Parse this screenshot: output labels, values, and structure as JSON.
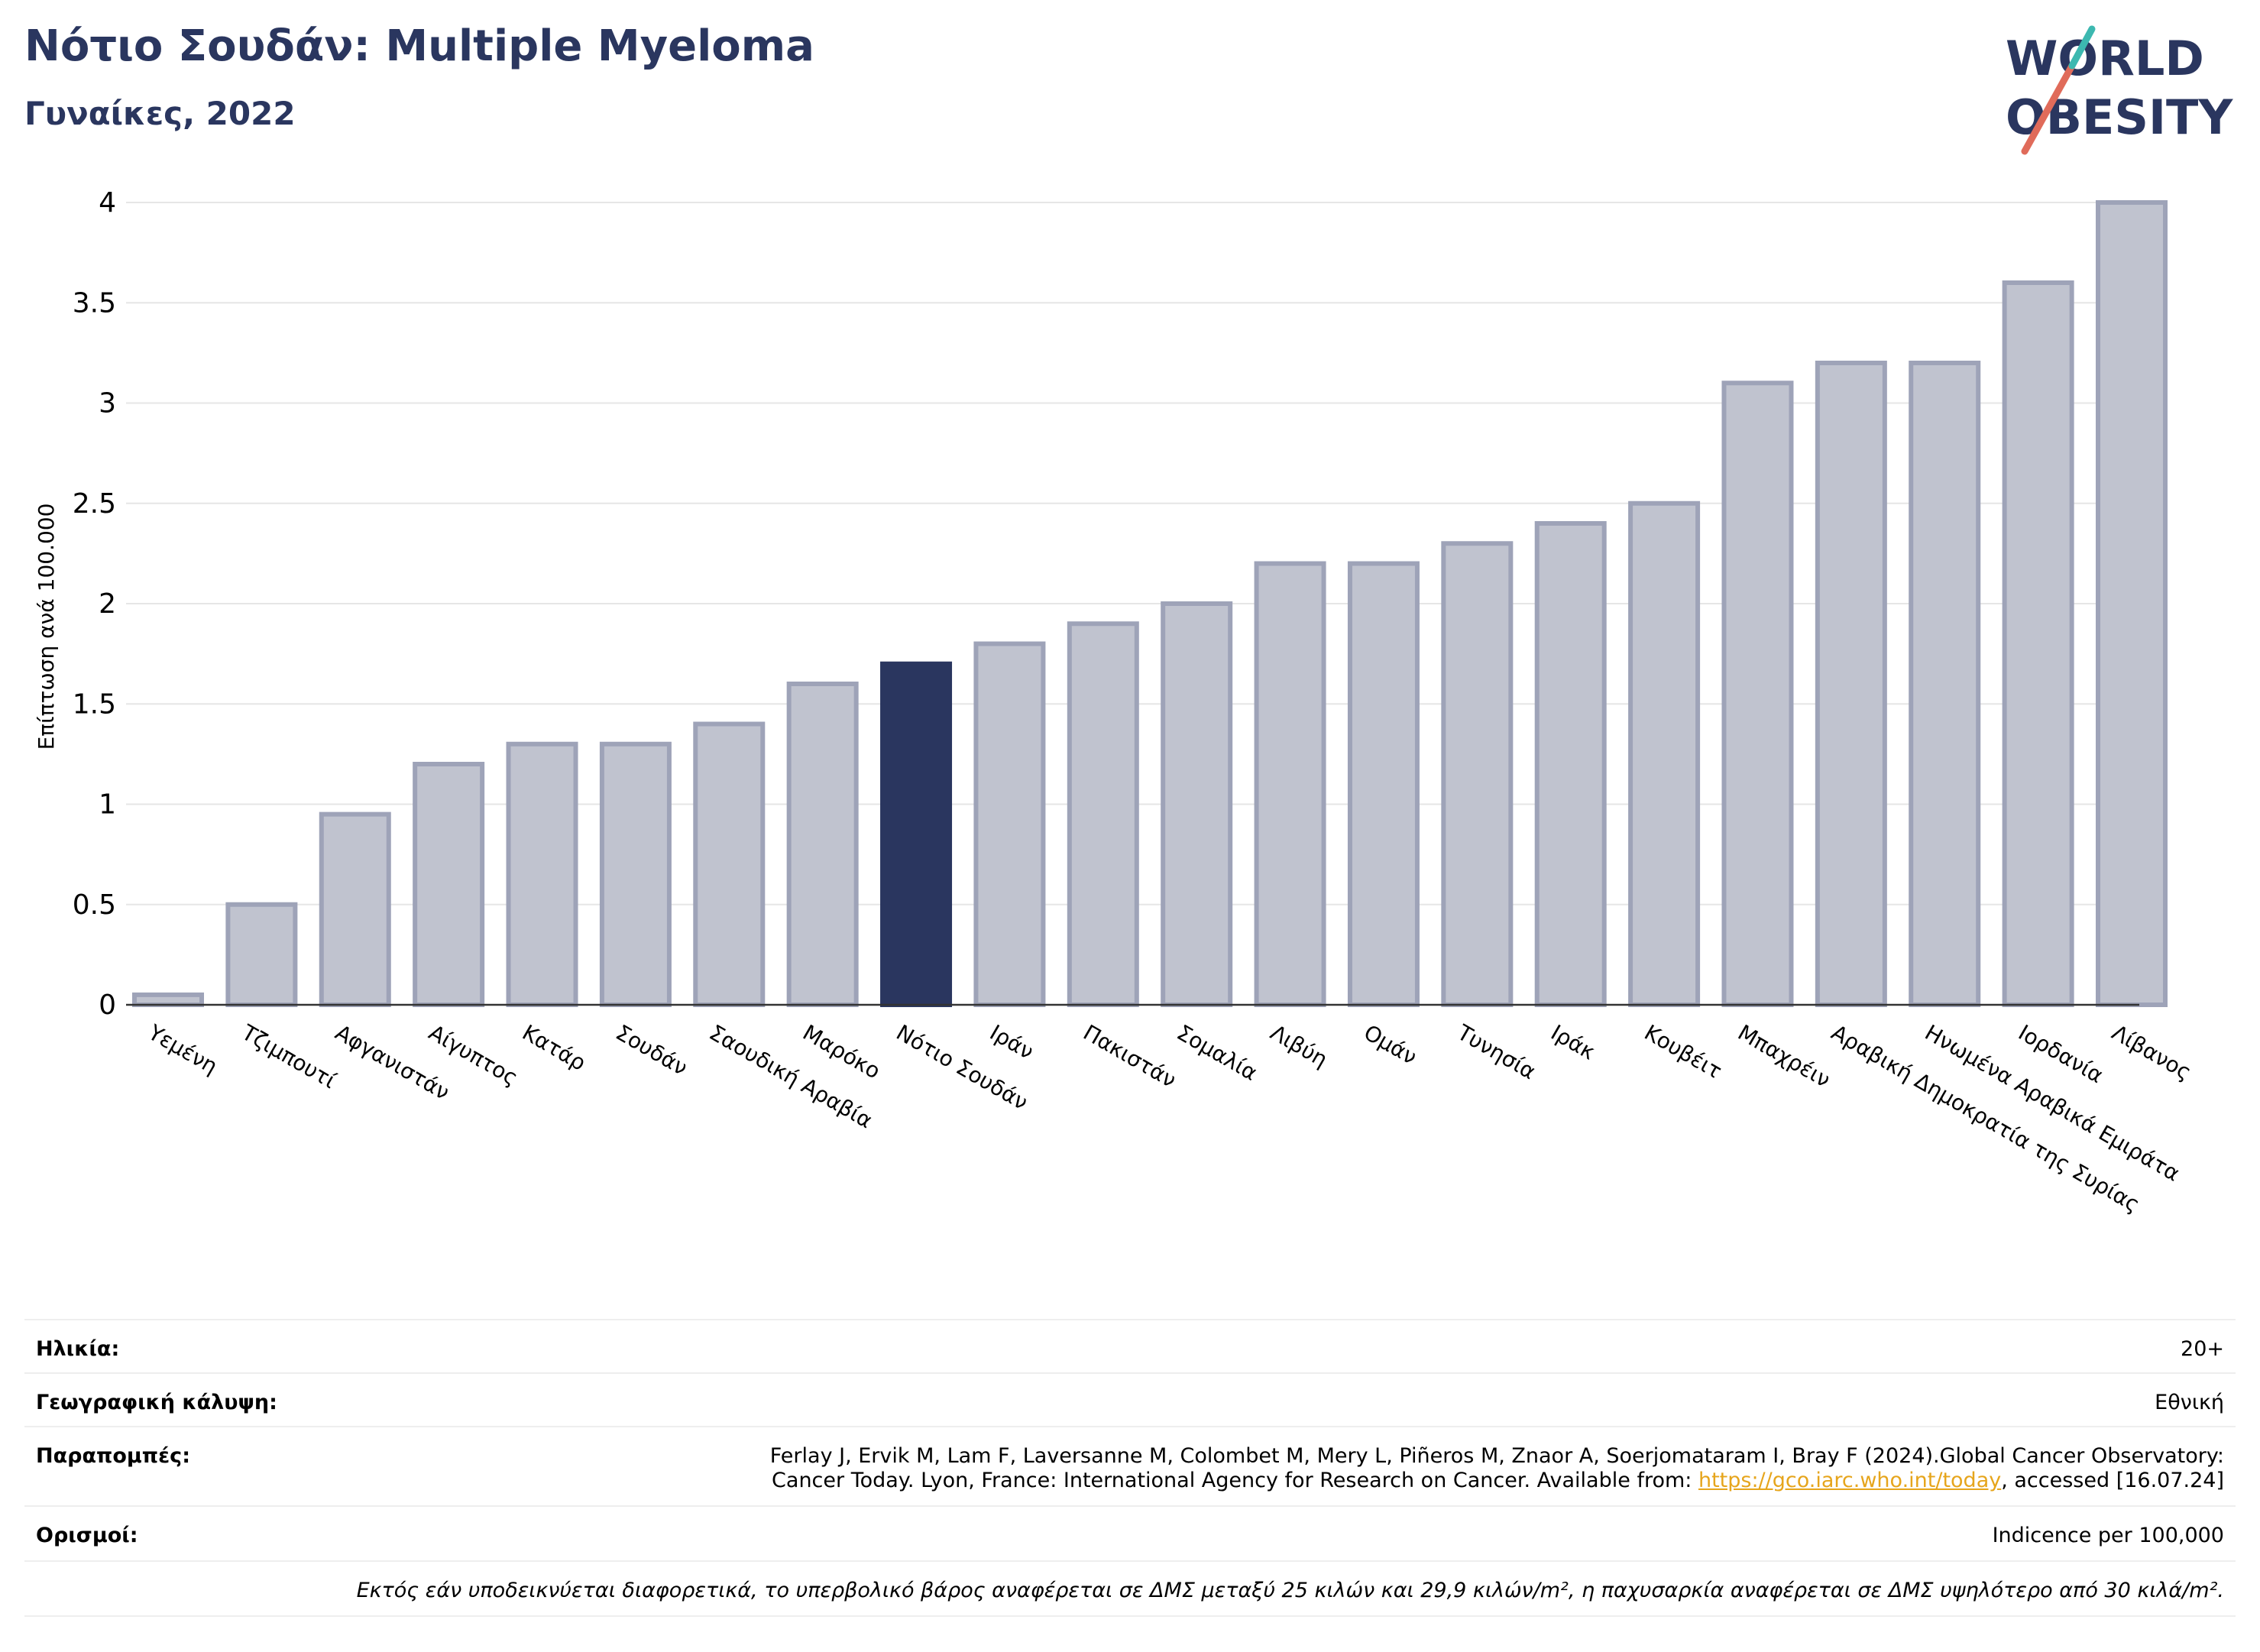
{
  "header": {
    "title": "Νότιο Σουδάν: Multiple Myeloma",
    "subtitle": "Γυναίκες, 2022"
  },
  "logo": {
    "line1": "WORLD",
    "line2": "OBESITY"
  },
  "colors": {
    "bar": "#c0c3cf",
    "bar_border": "#9ea3b8",
    "highlight": "#2a365f",
    "title": "#2a365f",
    "link": "#e6a51c"
  },
  "chart_data": {
    "type": "bar",
    "ylabel": "Επίπτωση ανά 100.000",
    "ylim": [
      0,
      4
    ],
    "yticks": [
      "0",
      "0.5",
      "1",
      "1.5",
      "2",
      "2.5",
      "3",
      "3.5",
      "4"
    ],
    "highlight": "Νότιο Σουδάν",
    "grid": true,
    "categories": [
      "Υεμένη",
      "Τζιμπουτί",
      "Αφγανιστάν",
      "Αίγυπτος",
      "Κατάρ",
      "Σουδάν",
      "Σαουδική Αραβία",
      "Μαρόκο",
      "Νότιο Σουδάν",
      "Ιράν",
      "Πακιστάν",
      "Σομαλία",
      "Λιβύη",
      "Ομάν",
      "Τυνησία",
      "Ιράκ",
      "Κουβέιτ",
      "Μπαχρέιν",
      "Αραβική Δημοκρατία της Συρίας",
      "Ηνωμένα Αραβικά Εμιράτα",
      "Ιορδανία",
      "Λίβανος"
    ],
    "values": [
      0.05,
      0.5,
      0.95,
      1.2,
      1.3,
      1.3,
      1.4,
      1.6,
      1.7,
      1.8,
      1.9,
      2.0,
      2.2,
      2.2,
      2.3,
      2.4,
      2.5,
      3.1,
      3.2,
      3.2,
      3.6,
      4.0
    ]
  },
  "info": {
    "age_label": "Ηλικία:",
    "age_value": "20+",
    "coverage_label": "Γεωγραφική κάλυψη:",
    "coverage_value": "Εθνική",
    "refs_label": "Παραπομπές:",
    "refs_line1": "Ferlay J, Ervik M, Lam F, Laversanne M, Colombet M, Mery L, Piñeros M, Znaor A, Soerjomataram I, Bray F (2024).Global Cancer Observatory:",
    "refs_line2_pre": "Cancer Today. Lyon, France: International Agency for Research on Cancer. Available from: ",
    "refs_link": "https://gco.iarc.who.int/today",
    "refs_line2_post": ", accessed [16.07.24]",
    "defs_label": "Ορισμοί:",
    "defs_value": "Indicence per 100,000",
    "footnote": "Εκτός εάν υποδεικνύεται διαφορετικά, το υπερβολικό βάρος αναφέρεται σε ΔΜΣ μεταξύ 25 κιλών και 29,9 κιλών/m², η παχυσαρκία αναφέρεται σε ΔΜΣ υψηλότερο από 30 κιλά/m²."
  }
}
